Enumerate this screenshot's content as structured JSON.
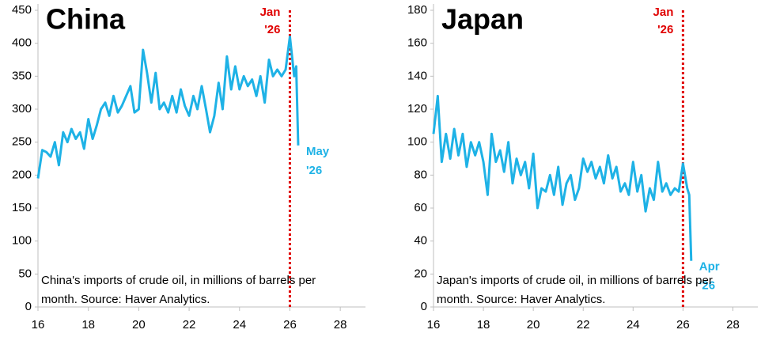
{
  "chart_data": [
    {
      "type": "line",
      "title": "China",
      "note": "China's imports of crude oil, in millions of barrels per month. Source: Haver Analytics.",
      "event": {
        "x": 26,
        "label": [
          "Jan",
          "'26"
        ],
        "color": "#e00000"
      },
      "end_label": [
        "May",
        "'26"
      ],
      "xlim": [
        16,
        29
      ],
      "xticks": [
        16,
        18,
        20,
        22,
        24,
        26,
        28
      ],
      "ylim": [
        0,
        450
      ],
      "yticks": [
        0,
        50,
        100,
        150,
        200,
        250,
        300,
        350,
        400,
        450
      ],
      "x": [
        16,
        16.17,
        16.33,
        16.5,
        16.67,
        16.83,
        17,
        17.17,
        17.33,
        17.5,
        17.67,
        17.83,
        18,
        18.17,
        18.33,
        18.5,
        18.67,
        18.83,
        19,
        19.17,
        19.33,
        19.5,
        19.67,
        19.83,
        20,
        20.17,
        20.33,
        20.5,
        20.67,
        20.83,
        21,
        21.17,
        21.33,
        21.5,
        21.67,
        21.83,
        22,
        22.17,
        22.33,
        22.5,
        22.67,
        22.83,
        23,
        23.17,
        23.33,
        23.5,
        23.67,
        23.83,
        24,
        24.17,
        24.33,
        24.5,
        24.67,
        24.83,
        25,
        25.17,
        25.33,
        25.5,
        25.67,
        25.83,
        26,
        26.17,
        26.25,
        26.33
      ],
      "series": [
        {
          "name": "China",
          "color": "#1eb2e6",
          "values": [
            195,
            238,
            235,
            228,
            250,
            215,
            265,
            250,
            270,
            255,
            265,
            240,
            285,
            255,
            275,
            300,
            310,
            290,
            320,
            295,
            305,
            320,
            335,
            295,
            300,
            390,
            355,
            310,
            355,
            300,
            310,
            295,
            320,
            295,
            330,
            305,
            290,
            320,
            300,
            335,
            300,
            265,
            290,
            340,
            300,
            380,
            330,
            365,
            330,
            350,
            335,
            345,
            320,
            350,
            310,
            375,
            350,
            360,
            350,
            360,
            410,
            350,
            365,
            245
          ]
        }
      ]
    },
    {
      "type": "line",
      "title": "Japan",
      "note": "Japan's imports of crude oil, in millions of barrels per month. Source: Haver Analytics.",
      "event": {
        "x": 26,
        "label": [
          "Jan",
          "'26"
        ],
        "color": "#e00000"
      },
      "end_label": [
        "Apr",
        "'26"
      ],
      "xlim": [
        16,
        29
      ],
      "xticks": [
        16,
        18,
        20,
        22,
        24,
        26,
        28
      ],
      "ylim": [
        0,
        180
      ],
      "yticks": [
        0,
        20,
        40,
        60,
        80,
        100,
        120,
        140,
        160,
        180
      ],
      "x": [
        16,
        16.17,
        16.33,
        16.5,
        16.67,
        16.83,
        17,
        17.17,
        17.33,
        17.5,
        17.67,
        17.83,
        18,
        18.17,
        18.33,
        18.5,
        18.67,
        18.83,
        19,
        19.17,
        19.33,
        19.5,
        19.67,
        19.83,
        20,
        20.17,
        20.33,
        20.5,
        20.67,
        20.83,
        21,
        21.17,
        21.33,
        21.5,
        21.67,
        21.83,
        22,
        22.17,
        22.33,
        22.5,
        22.67,
        22.83,
        23,
        23.17,
        23.33,
        23.5,
        23.67,
        23.83,
        24,
        24.17,
        24.33,
        24.5,
        24.67,
        24.83,
        25,
        25.17,
        25.33,
        25.5,
        25.67,
        25.83,
        26,
        26.17,
        26.25,
        26.33
      ],
      "series": [
        {
          "name": "Japan",
          "color": "#1eb2e6",
          "values": [
            105,
            128,
            88,
            105,
            90,
            108,
            92,
            105,
            85,
            100,
            92,
            100,
            88,
            68,
            105,
            88,
            95,
            82,
            100,
            75,
            90,
            80,
            88,
            72,
            93,
            60,
            72,
            70,
            80,
            68,
            85,
            62,
            75,
            80,
            65,
            72,
            90,
            82,
            88,
            78,
            85,
            75,
            92,
            78,
            85,
            70,
            75,
            68,
            88,
            70,
            80,
            58,
            72,
            65,
            88,
            70,
            75,
            68,
            72,
            70,
            87,
            72,
            68,
            28
          ]
        }
      ]
    }
  ]
}
